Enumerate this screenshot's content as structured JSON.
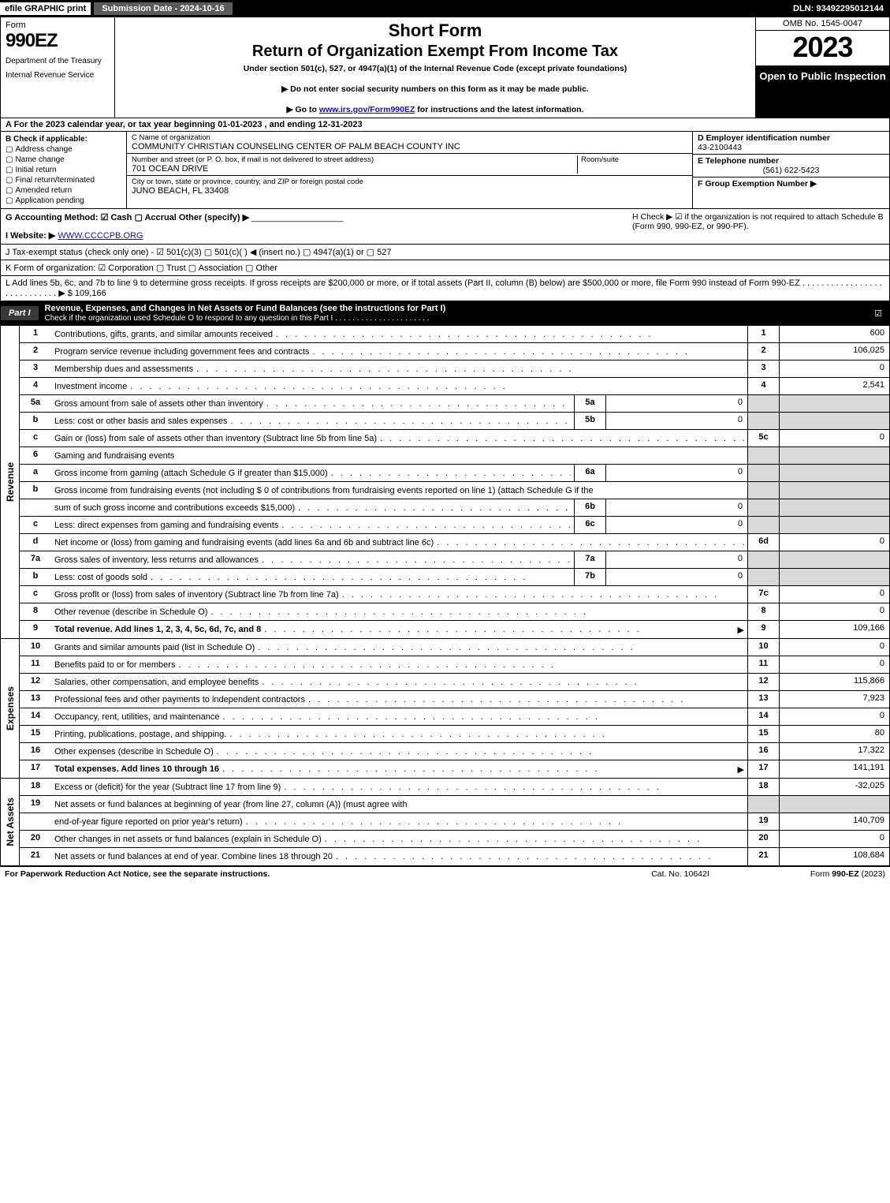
{
  "topbar": {
    "efile": "efile GRAPHIC print",
    "subdate": "Submission Date - 2024-10-16",
    "dln": "DLN: 93492295012144"
  },
  "header": {
    "form_word": "Form",
    "form_num": "990EZ",
    "dept1": "Department of the Treasury",
    "dept2": "Internal Revenue Service",
    "short": "Short Form",
    "title": "Return of Organization Exempt From Income Tax",
    "under": "Under section 501(c), 527, or 4947(a)(1) of the Internal Revenue Code (except private foundations)",
    "note1": "▶ Do not enter social security numbers on this form as it may be made public.",
    "note2_pre": "▶ Go to ",
    "note2_link": "www.irs.gov/Form990EZ",
    "note2_post": " for instructions and the latest information.",
    "omb": "OMB No. 1545-0047",
    "year": "2023",
    "open": "Open to Public Inspection"
  },
  "row_a": "A  For the 2023 calendar year, or tax year beginning 01-01-2023 , and ending 12-31-2023",
  "col_b": {
    "label": "B  Check if applicable:",
    "opts": [
      "Address change",
      "Name change",
      "Initial return",
      "Final return/terminated",
      "Amended return",
      "Application pending"
    ]
  },
  "col_c": {
    "c_label": "C Name of organization",
    "c_val": "COMMUNITY CHRISTIAN COUNSELING CENTER OF PALM BEACH COUNTY INC",
    "addr_label": "Number and street (or P. O. box, if mail is not delivered to street address)",
    "addr_val": "701 OCEAN DRIVE",
    "room_label": "Room/suite",
    "city_label": "City or town, state or province, country, and ZIP or foreign postal code",
    "city_val": "JUNO BEACH, FL  33408"
  },
  "col_d": {
    "d_label": "D Employer identification number",
    "d_val": "43-2100443",
    "e_label": "E Telephone number",
    "e_val": "(561) 622-5423",
    "f_label": "F Group Exemption Number   ▶"
  },
  "row_g": {
    "g_label": "G Accounting Method:   ☑ Cash   ▢ Accrual   Other (specify) ▶",
    "h_label": "H   Check ▶  ☑  if the organization is not required to attach Schedule B (Form 990, 990-EZ, or 990-PF).",
    "i_pre": "I Website: ▶",
    "i_link": "WWW.CCCCPB.ORG",
    "j": "J Tax-exempt status (check only one) -  ☑ 501(c)(3)  ▢  501(c)(  ) ◀ (insert no.)  ▢  4947(a)(1) or  ▢  527",
    "k": "K Form of organization:   ☑ Corporation   ▢ Trust   ▢ Association   ▢ Other",
    "l": "L Add lines 5b, 6c, and 7b to line 9 to determine gross receipts. If gross receipts are $200,000 or more, or if total assets (Part II, column (B) below) are $500,000 or more, file Form 990 instead of Form 990-EZ  .  .  .  .  .  .  .  .  .  .  .  .  .  .  .  .  .  .  .  .  .  .  .  .  .  .  .  .   ▶ $ 109,166"
  },
  "part1": {
    "tag": "Part I",
    "txt": "Revenue, Expenses, and Changes in Net Assets or Fund Balances (see the instructions for Part I)",
    "sub": "Check if the organization used Schedule O to respond to any question in this Part I  .  .  .  .  .  .  .  .  .  .  .  .  .  .  .  .  .  .  .  .  .  ."
  },
  "side": {
    "rev": "Revenue",
    "exp": "Expenses",
    "net": "Net Assets"
  },
  "lines": {
    "l1": {
      "n": "1",
      "d": "Contributions, gifts, grants, and similar amounts received",
      "k": "1",
      "v": "600"
    },
    "l2": {
      "n": "2",
      "d": "Program service revenue including government fees and contracts",
      "k": "2",
      "v": "106,025"
    },
    "l3": {
      "n": "3",
      "d": "Membership dues and assessments",
      "k": "3",
      "v": "0"
    },
    "l4": {
      "n": "4",
      "d": "Investment income",
      "k": "4",
      "v": "2,541"
    },
    "l5a": {
      "n": "5a",
      "d": "Gross amount from sale of assets other than inventory",
      "s": "5a",
      "sv": "0"
    },
    "l5b": {
      "n": "b",
      "d": "Less: cost or other basis and sales expenses",
      "s": "5b",
      "sv": "0"
    },
    "l5c": {
      "n": "c",
      "d": "Gain or (loss) from sale of assets other than inventory (Subtract line 5b from line 5a)",
      "k": "5c",
      "v": "0"
    },
    "l6": {
      "n": "6",
      "d": "Gaming and fundraising events"
    },
    "l6a": {
      "n": "a",
      "d": "Gross income from gaming (attach Schedule G if greater than $15,000)",
      "s": "6a",
      "sv": "0"
    },
    "l6b1": {
      "n": "b",
      "d": "Gross income from fundraising events (not including $  0             of contributions from fundraising events reported on line 1) (attach Schedule G if the"
    },
    "l6b2": {
      "n": "",
      "d": "sum of such gross income and contributions exceeds $15,000)",
      "s": "6b",
      "sv": "0"
    },
    "l6c": {
      "n": "c",
      "d": "Less: direct expenses from gaming and fundraising events",
      "s": "6c",
      "sv": "0"
    },
    "l6d": {
      "n": "d",
      "d": "Net income or (loss) from gaming and fundraising events (add lines 6a and 6b and subtract line 6c)",
      "k": "6d",
      "v": "0"
    },
    "l7a": {
      "n": "7a",
      "d": "Gross sales of inventory, less returns and allowances",
      "s": "7a",
      "sv": "0"
    },
    "l7b": {
      "n": "b",
      "d": "Less: cost of goods sold",
      "s": "7b",
      "sv": "0"
    },
    "l7c": {
      "n": "c",
      "d": "Gross profit or (loss) from sales of inventory (Subtract line 7b from line 7a)",
      "k": "7c",
      "v": "0"
    },
    "l8": {
      "n": "8",
      "d": "Other revenue (describe in Schedule O)",
      "k": "8",
      "v": "0"
    },
    "l9": {
      "n": "9",
      "d": "Total revenue. Add lines 1, 2, 3, 4, 5c, 6d, 7c, and 8",
      "k": "9",
      "v": "109,166",
      "arrow": true,
      "bold": true
    },
    "l10": {
      "n": "10",
      "d": "Grants and similar amounts paid (list in Schedule O)",
      "k": "10",
      "v": "0"
    },
    "l11": {
      "n": "11",
      "d": "Benefits paid to or for members",
      "k": "11",
      "v": "0"
    },
    "l12": {
      "n": "12",
      "d": "Salaries, other compensation, and employee benefits",
      "k": "12",
      "v": "115,866"
    },
    "l13": {
      "n": "13",
      "d": "Professional fees and other payments to independent contractors",
      "k": "13",
      "v": "7,923"
    },
    "l14": {
      "n": "14",
      "d": "Occupancy, rent, utilities, and maintenance",
      "k": "14",
      "v": "0"
    },
    "l15": {
      "n": "15",
      "d": "Printing, publications, postage, and shipping.",
      "k": "15",
      "v": "80"
    },
    "l16": {
      "n": "16",
      "d": "Other expenses (describe in Schedule O)",
      "k": "16",
      "v": "17,322"
    },
    "l17": {
      "n": "17",
      "d": "Total expenses. Add lines 10 through 16",
      "k": "17",
      "v": "141,191",
      "arrow": true,
      "bold": true
    },
    "l18": {
      "n": "18",
      "d": "Excess or (deficit) for the year (Subtract line 17 from line 9)",
      "k": "18",
      "v": "-32,025"
    },
    "l19a": {
      "n": "19",
      "d": "Net assets or fund balances at beginning of year (from line 27, column (A)) (must agree with"
    },
    "l19b": {
      "n": "",
      "d": "end-of-year figure reported on prior year's return)",
      "k": "19",
      "v": "140,709"
    },
    "l20": {
      "n": "20",
      "d": "Other changes in net assets or fund balances (explain in Schedule O)",
      "k": "20",
      "v": "0"
    },
    "l21": {
      "n": "21",
      "d": "Net assets or fund balances at end of year. Combine lines 18 through 20",
      "k": "21",
      "v": "108,684"
    }
  },
  "footer": {
    "f1": "For Paperwork Reduction Act Notice, see the separate instructions.",
    "f2": "Cat. No. 10642I",
    "f3_pre": "Form ",
    "f3_b": "990-EZ",
    "f3_post": " (2023)"
  },
  "dots": ".  .  .  .  .  .  .  .  .  .  .  .  .  .  .  .  .  .  .  .  .  .  .  .  .  .  .  .  .  .  .  .  .  .  .  .  .  .  .  ."
}
